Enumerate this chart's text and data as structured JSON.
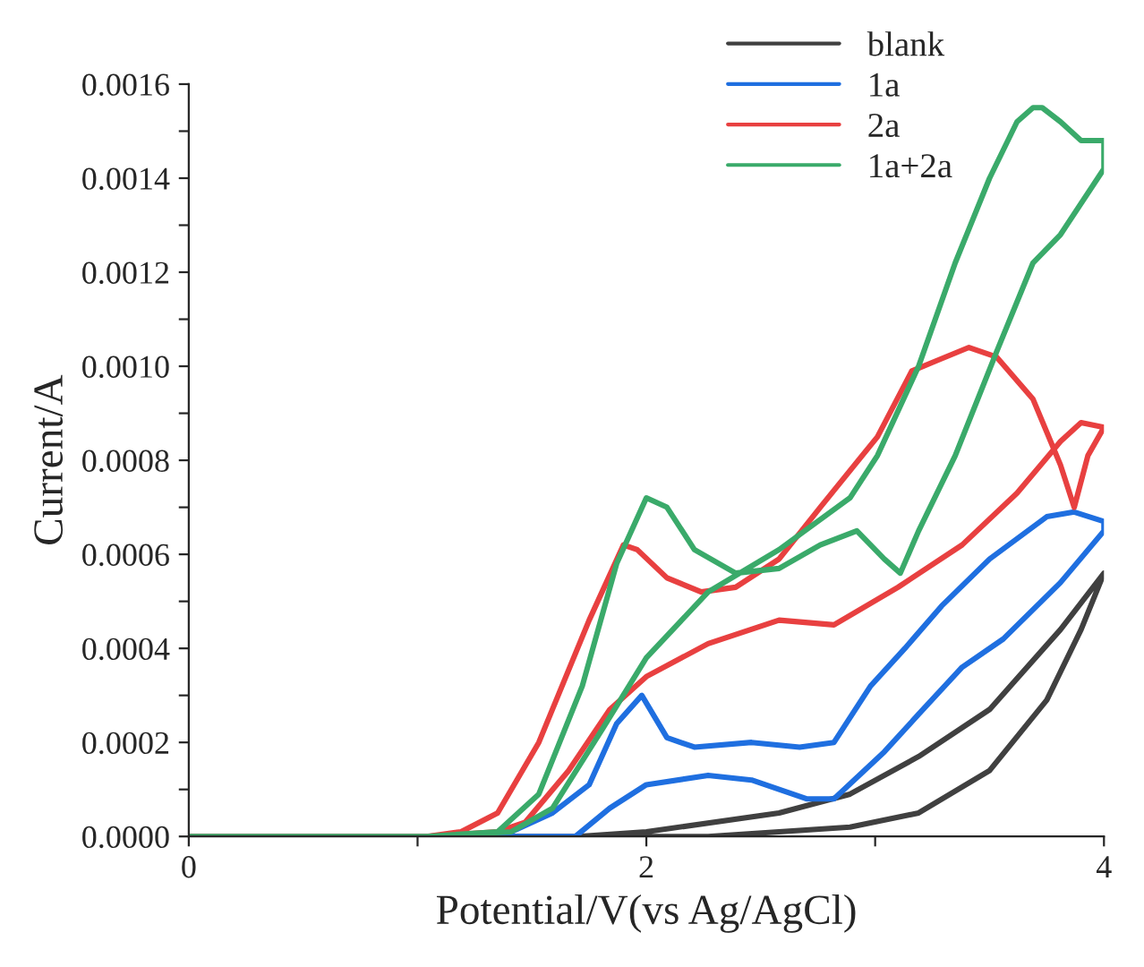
{
  "chart_data": {
    "type": "line",
    "xlabel": "Potential/V(vs Ag/AgCl)",
    "ylabel": "Current/A",
    "xlim": [
      0,
      4
    ],
    "xticks": [
      0,
      {
        "value": 1,
        "label": null
      },
      2,
      {
        "value": 3,
        "label": null
      },
      4
    ],
    "ylim": [
      0,
      0.0016
    ],
    "yticks": [
      {
        "value": 0,
        "label": "0.0000"
      },
      {
        "value": 0.0001,
        "label": null
      },
      {
        "value": 0.0002,
        "label": "0.0002"
      },
      {
        "value": 0.0003,
        "label": null
      },
      {
        "value": 0.0004,
        "label": "0.0004"
      },
      {
        "value": 0.0005,
        "label": null
      },
      {
        "value": 0.0006,
        "label": "0.0006"
      },
      {
        "value": 0.0007,
        "label": null
      },
      {
        "value": 0.0008,
        "label": "0.0008"
      },
      {
        "value": 0.0009,
        "label": null
      },
      {
        "value": 0.001,
        "label": "0.0010"
      },
      {
        "value": 0.0011,
        "label": null
      },
      {
        "value": 0.0012,
        "label": "0.0012"
      },
      {
        "value": 0.0013,
        "label": null
      },
      {
        "value": 0.0014,
        "label": "0.0014"
      },
      {
        "value": 0.0015,
        "label": null
      },
      {
        "value": 0.0016,
        "label": "0.0016"
      }
    ],
    "grid": false,
    "legend": "top right",
    "marker": "none",
    "line_style": "solid",
    "series": [
      {
        "name": "blank",
        "color": "#404040",
        "x": [
          0,
          1.0,
          1.7,
          2.0,
          2.58,
          2.89,
          3.19,
          3.5,
          3.81,
          4.0,
          3.9,
          3.75,
          3.5,
          3.19,
          2.89,
          2.27,
          1.5
        ],
        "values": [
          0,
          0,
          0,
          1e-05,
          5e-05,
          9e-05,
          0.00017,
          0.00027,
          0.00044,
          0.00056,
          0.00044,
          0.00029,
          0.00014,
          5e-05,
          2e-05,
          0,
          0
        ]
      },
      {
        "name": "1a",
        "color": "#1f6fe0",
        "x": [
          0,
          1.04,
          1.69,
          1.84,
          2.0,
          2.27,
          2.46,
          2.7,
          2.82,
          3.04,
          3.19,
          3.38,
          3.56,
          3.81,
          4.0,
          4.0,
          3.87,
          3.75,
          3.5,
          3.29,
          3.13,
          2.98,
          2.82,
          2.67,
          2.46,
          2.21,
          2.09,
          1.98,
          1.87,
          1.75,
          1.59,
          1.41,
          1.04
        ],
        "values": [
          0,
          0,
          0,
          6e-05,
          0.00011,
          0.00013,
          0.00012,
          8e-05,
          8e-05,
          0.00018,
          0.00026,
          0.00036,
          0.00042,
          0.00054,
          0.00065,
          0.00067,
          0.00069,
          0.00068,
          0.00059,
          0.00049,
          0.0004,
          0.00032,
          0.0002,
          0.00019,
          0.0002,
          0.00019,
          0.00021,
          0.0003,
          0.00024,
          0.00011,
          5e-05,
          1e-05,
          0
        ]
      },
      {
        "name": "2a",
        "color": "#e84040",
        "x": [
          0,
          1.04,
          1.19,
          1.35,
          1.53,
          1.75,
          1.9,
          1.96,
          2.09,
          2.24,
          2.39,
          2.58,
          2.76,
          3.01,
          3.16,
          3.26,
          3.41,
          3.53,
          3.69,
          3.81,
          3.87,
          3.93,
          4.0,
          3.9,
          3.81,
          3.62,
          3.38,
          3.1,
          2.82,
          2.58,
          2.27,
          2.0,
          1.84,
          1.66,
          1.47,
          1.35,
          1.04
        ],
        "values": [
          0,
          0,
          1e-05,
          5e-05,
          0.0002,
          0.00046,
          0.00062,
          0.00061,
          0.00055,
          0.00052,
          0.00053,
          0.00059,
          0.0007,
          0.00085,
          0.00099,
          0.00101,
          0.00104,
          0.00102,
          0.00093,
          0.00079,
          0.0007,
          0.00081,
          0.00087,
          0.00088,
          0.00084,
          0.00073,
          0.00062,
          0.00053,
          0.00045,
          0.00046,
          0.00041,
          0.00034,
          0.00027,
          0.00014,
          3e-05,
          1e-05,
          0
        ]
      },
      {
        "name": "1a+2a",
        "color": "#3aaa6a",
        "x": [
          0,
          1.04,
          1.41,
          1.59,
          1.81,
          2.0,
          2.27,
          2.58,
          2.89,
          3.01,
          3.19,
          3.35,
          3.5,
          3.62,
          3.69,
          3.73,
          3.81,
          3.9,
          4.0,
          4.0,
          3.81,
          3.69,
          3.53,
          3.35,
          3.19,
          3.11,
          3.04,
          2.92,
          2.76,
          2.58,
          2.39,
          2.21,
          2.09,
          2.0,
          1.87,
          1.72,
          1.53,
          1.35,
          1.04
        ],
        "values": [
          0,
          0,
          1e-05,
          6e-05,
          0.00023,
          0.00038,
          0.00052,
          0.00061,
          0.00072,
          0.00081,
          0.001,
          0.00122,
          0.0014,
          0.00152,
          0.00155,
          0.00155,
          0.00152,
          0.00148,
          0.00148,
          0.00142,
          0.00128,
          0.00122,
          0.00103,
          0.00081,
          0.00065,
          0.00056,
          0.00059,
          0.00065,
          0.00062,
          0.00057,
          0.00056,
          0.00061,
          0.0007,
          0.00072,
          0.00058,
          0.00032,
          9e-05,
          1e-05,
          0
        ]
      }
    ]
  }
}
